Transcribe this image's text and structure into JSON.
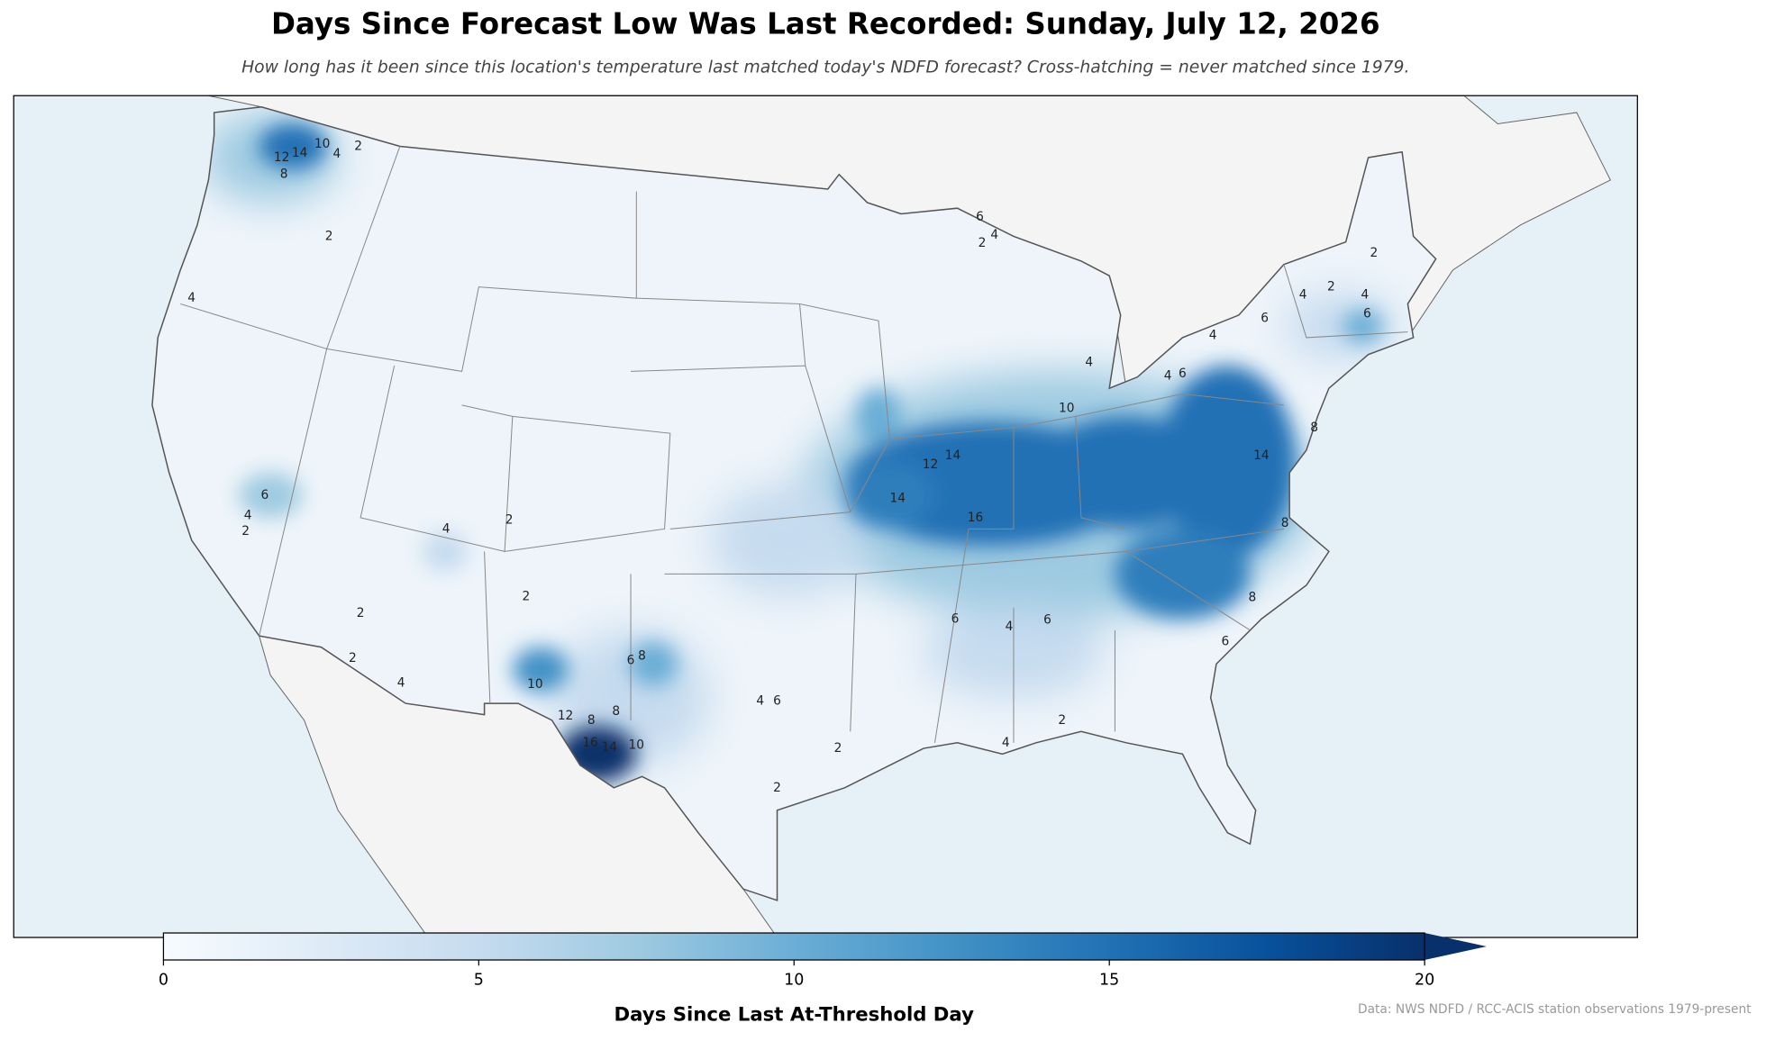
{
  "title": "Days Since Forecast Low Was Last Recorded: Sunday, July 12, 2026",
  "subtitle": "How long has it been since this location's temperature last matched today's NDFD forecast? Cross-hatching = never matched since 1979.",
  "colorbar": {
    "label": "Days Since Last At-Threshold Day",
    "lim": [
      0,
      20
    ],
    "ticks": [
      0,
      5,
      10,
      15,
      20
    ],
    "extend": "max",
    "colors": [
      "#f7fbff",
      "#deebf7",
      "#c6dbef",
      "#9ecae1",
      "#6baed6",
      "#4292c6",
      "#2171b5",
      "#08519c",
      "#08306b"
    ]
  },
  "source": "Data: NWS NDFD / RCC-ACIS station observations 1979-present",
  "contour_labels": [
    2,
    10,
    4,
    8,
    12,
    14,
    2,
    4,
    6,
    4,
    2,
    4,
    2,
    2,
    2,
    2,
    4,
    10,
    12,
    8,
    8,
    6,
    8,
    16,
    14,
    10,
    4,
    6,
    2,
    2,
    14,
    12,
    14,
    16,
    10,
    4,
    4,
    6,
    4,
    6,
    4,
    2,
    4,
    6,
    2,
    8,
    6,
    6,
    4,
    6,
    2,
    4,
    6,
    4,
    2,
    8,
    8,
    14
  ]
}
